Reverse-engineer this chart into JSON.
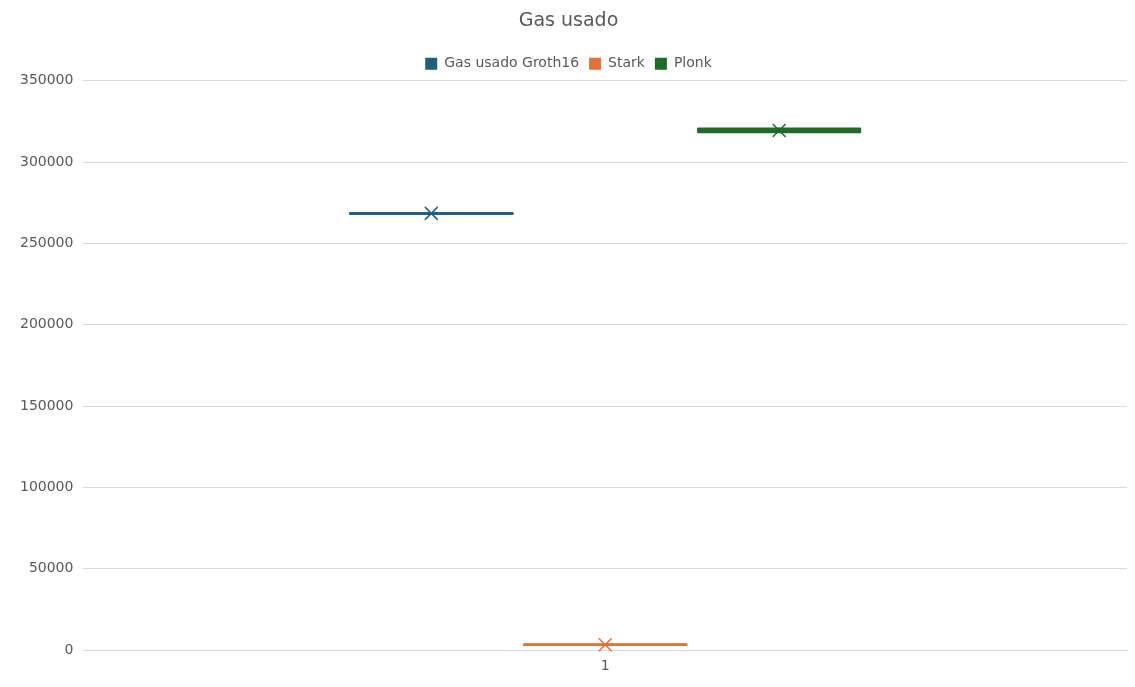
{
  "chart_data": {
    "type": "box",
    "title": "Gas usado",
    "categories": [
      "1"
    ],
    "series": [
      {
        "name": "Gas usado Groth16",
        "color": "#1f5f7f",
        "boxes": [
          {
            "low": 268500,
            "q1": 268500,
            "median": 268500,
            "q3": 268500,
            "high": 268500,
            "mean": 268500
          }
        ]
      },
      {
        "name": "Stark",
        "color": "#e0723a",
        "boxes": [
          {
            "low": 3300,
            "q1": 3300,
            "median": 3300,
            "q3": 3300,
            "high": 3300,
            "mean": 3300
          }
        ]
      },
      {
        "name": "Plonk",
        "color": "#1e6b2a",
        "boxes": [
          {
            "low": 318500,
            "q1": 318500,
            "median": 319500,
            "q3": 320500,
            "high": 320500,
            "mean": 319500
          }
        ]
      }
    ],
    "ylim": [
      0,
      350000
    ],
    "yticks": [
      0,
      50000,
      100000,
      150000,
      200000,
      250000,
      300000,
      350000
    ],
    "grid": "y",
    "legend": "top"
  }
}
